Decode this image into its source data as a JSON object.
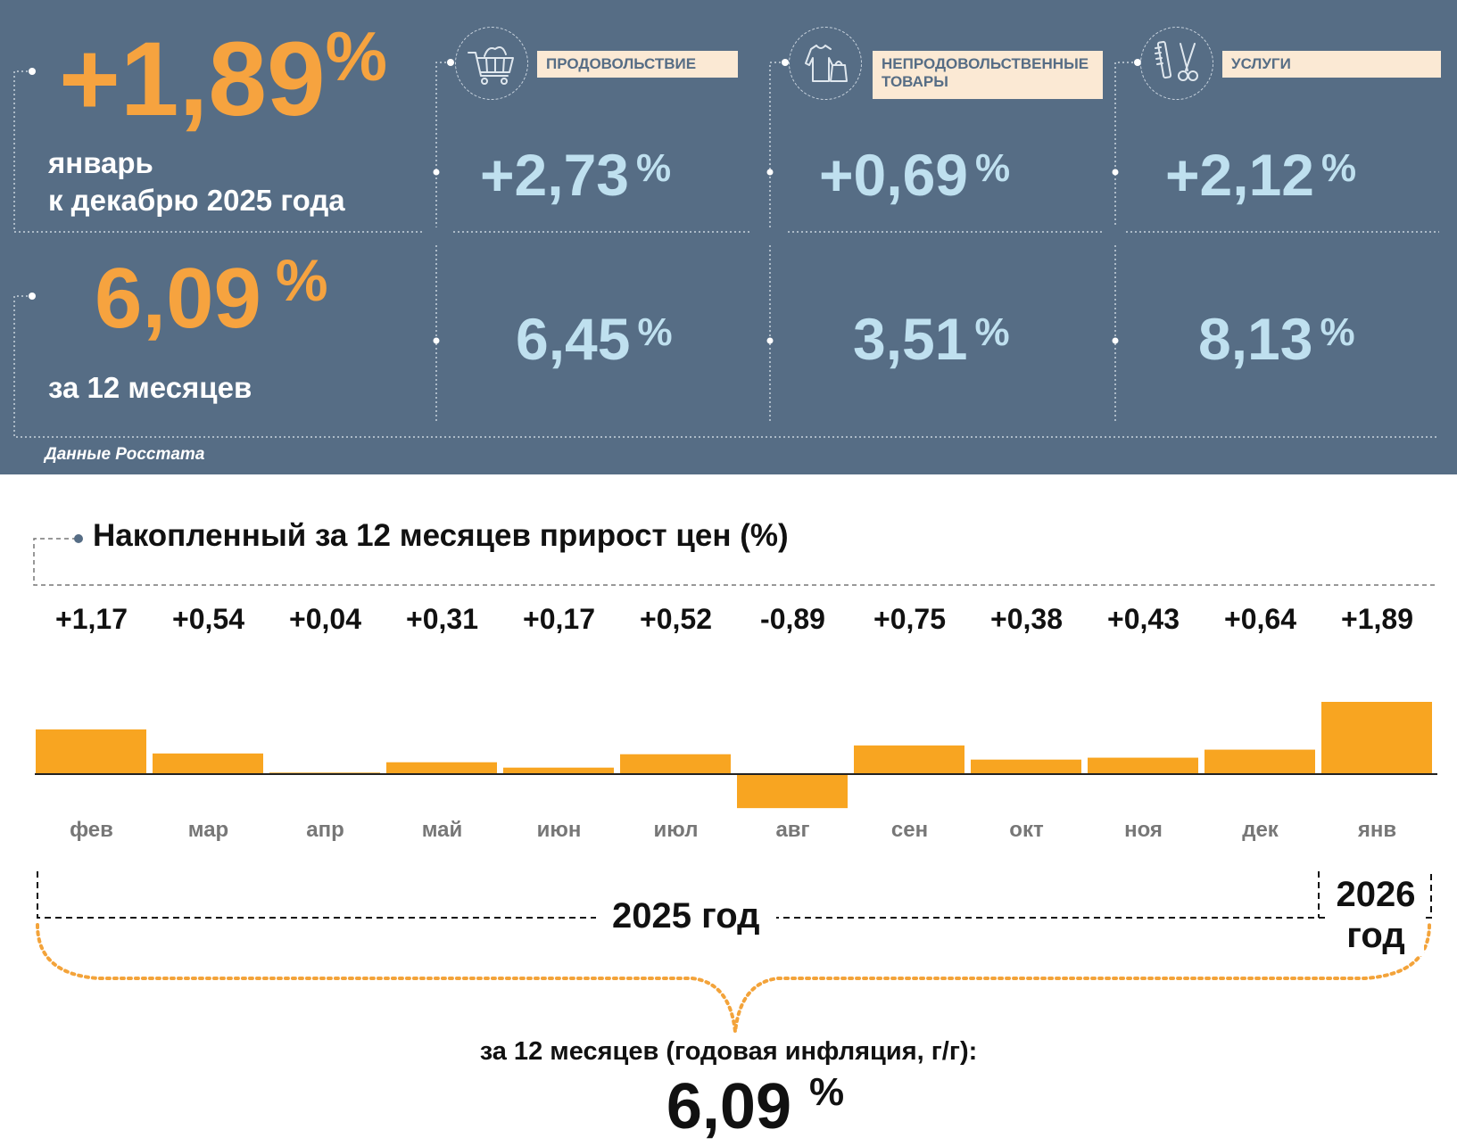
{
  "header": {
    "main_change": {
      "value": "+1,89",
      "unit": "%",
      "label_line1": "январь",
      "label_line2": "к декабрю 2025 года"
    },
    "annual": {
      "value": "6,09",
      "unit": "%",
      "label": "за 12 месяцев"
    },
    "source": "Данные Росстата",
    "categories": [
      {
        "icon": "shopping-cart-icon",
        "label": "ПРОДОВОЛЬСТВИЕ",
        "month_value": "+2,73",
        "annual_value": "6,45",
        "unit": "%"
      },
      {
        "icon": "clothing-bag-icon",
        "label": "НЕПРОДОВОЛЬСТВЕННЫЕ ТОВАРЫ",
        "month_value": "+0,69",
        "annual_value": "3,51",
        "unit": "%"
      },
      {
        "icon": "comb-scissors-icon",
        "label": "УСЛУГИ",
        "month_value": "+2,12",
        "annual_value": "8,13",
        "unit": "%"
      }
    ],
    "colors": {
      "panel": "#566d85",
      "accent": "#f6a33f",
      "value_blue": "#bfe0ef",
      "label_bg": "#fbe9d4"
    }
  },
  "chart_data": {
    "type": "bar",
    "title": "Накопленный за 12 месяцев прирост цен (%)",
    "categories": [
      "фев",
      "мар",
      "апр",
      "май",
      "июн",
      "июл",
      "авг",
      "сен",
      "окт",
      "ноя",
      "дек",
      "янв"
    ],
    "values": [
      1.17,
      0.54,
      0.04,
      0.31,
      0.17,
      0.52,
      -0.89,
      0.75,
      0.38,
      0.43,
      0.64,
      1.89
    ],
    "value_labels": [
      "+1,17",
      "+0,54",
      "+0,04",
      "+0,31",
      "+0,17",
      "+0,52",
      "-0,89",
      "+0,75",
      "+0,38",
      "+0,43",
      "+0,64",
      "+1,89"
    ],
    "bar_color": "#f8a521",
    "year_label_2025": "2025 год",
    "year_label_2026_line1": "2026",
    "year_label_2026_line2": "год",
    "footer_label": "за 12 месяцев (годовая инфляция, г/г):",
    "footer_value": "6,09",
    "footer_unit": "%"
  }
}
